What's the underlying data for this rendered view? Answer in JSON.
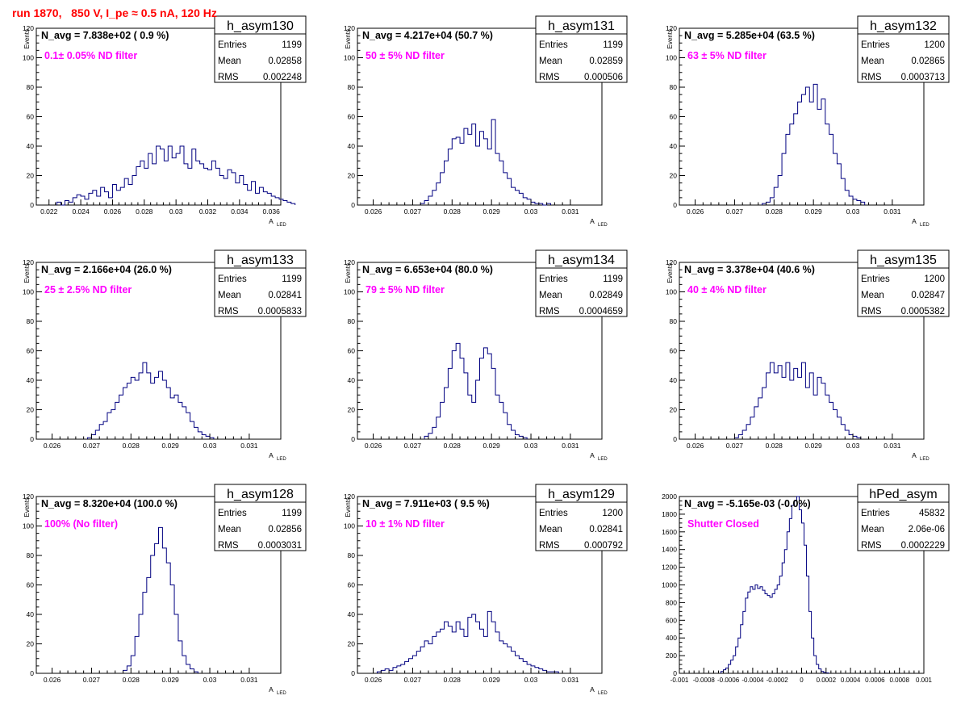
{
  "run_title": "run 1870,   850 V, I_pe ≈ 0.5 nA, 120 Hz",
  "colors": {
    "histogram": "#000080",
    "annotation": "#ff00ff",
    "title": "#ff0000",
    "text": "#000000"
  },
  "stats_labels": {
    "entries": "Entries",
    "mean": "Mean",
    "rms": "RMS"
  },
  "chart_data": [
    {
      "type": "histogram",
      "name": "h_asym130",
      "navg": "N_avg = 7.838e+02 ( 0.9 %)",
      "filter": "0.1± 0.05% ND filter",
      "entries": "1199",
      "mean": "0.02858",
      "rms": "0.002248",
      "ylabel": "Events",
      "xlabel": "A",
      "xlabel_sub": "LED",
      "xlim": [
        0.0212,
        0.0366
      ],
      "ylim": [
        0,
        120
      ],
      "xticks": [
        0.022,
        0.024,
        0.026,
        0.028,
        0.03,
        0.032,
        0.034,
        0.036
      ],
      "xtick_labels": [
        "0.022",
        "0.024",
        "0.026",
        "0.028",
        "0.03",
        "0.032",
        "0.034",
        "0.036"
      ],
      "yticks": [
        0,
        20,
        40,
        60,
        80,
        100,
        120
      ],
      "ytick_labels": [
        "0",
        "20",
        "40",
        "60",
        "80",
        "100",
        "120"
      ],
      "bin_start": 0.0225,
      "bin_width": 0.00025,
      "counts": [
        2,
        0,
        3,
        2,
        5,
        7,
        6,
        4,
        8,
        10,
        6,
        12,
        9,
        5,
        14,
        10,
        12,
        18,
        14,
        20,
        26,
        30,
        25,
        35,
        28,
        40,
        38,
        30,
        40,
        32,
        35,
        40,
        28,
        25,
        38,
        30,
        28,
        25,
        24,
        30,
        25,
        20,
        18,
        24,
        22,
        15,
        20,
        14,
        10,
        16,
        8,
        12,
        9,
        8,
        6,
        5,
        4,
        3,
        2,
        1
      ]
    },
    {
      "type": "histogram",
      "name": "h_asym131",
      "navg": "N_avg = 4.217e+04 (50.7 %)",
      "filter": "50 ± 5% ND filter",
      "entries": "1199",
      "mean": "0.02859",
      "rms": "0.000506",
      "ylabel": "Events",
      "xlabel": "A",
      "xlabel_sub": "LED",
      "xlim": [
        0.0256,
        0.0318
      ],
      "ylim": [
        0,
        120
      ],
      "xticks": [
        0.026,
        0.027,
        0.028,
        0.029,
        0.03,
        0.031
      ],
      "xtick_labels": [
        "0.026",
        "0.027",
        "0.028",
        "0.029",
        "0.03",
        "0.031"
      ],
      "yticks": [
        0,
        20,
        40,
        60,
        80,
        100,
        120
      ],
      "ytick_labels": [
        "0",
        "20",
        "40",
        "60",
        "80",
        "100",
        "120"
      ],
      "bin_start": 0.0272,
      "bin_width": 0.0001,
      "counts": [
        1,
        3,
        6,
        10,
        15,
        22,
        30,
        38,
        45,
        46,
        42,
        52,
        48,
        55,
        40,
        50,
        45,
        38,
        58,
        35,
        30,
        22,
        18,
        12,
        10,
        8,
        5,
        4,
        2,
        1,
        1,
        0,
        1
      ]
    },
    {
      "type": "histogram",
      "name": "h_asym132",
      "navg": "N_avg = 5.285e+04 (63.5 %)",
      "filter": "63 ± 5% ND filter",
      "entries": "1200",
      "mean": "0.02865",
      "rms": "0.0003713",
      "ylabel": "Events",
      "xlabel": "A",
      "xlabel_sub": "LED",
      "xlim": [
        0.0256,
        0.0318
      ],
      "ylim": [
        0,
        120
      ],
      "xticks": [
        0.026,
        0.027,
        0.028,
        0.029,
        0.03,
        0.031
      ],
      "xtick_labels": [
        "0.026",
        "0.027",
        "0.028",
        "0.029",
        "0.03",
        "0.031"
      ],
      "yticks": [
        0,
        20,
        40,
        60,
        80,
        100,
        120
      ],
      "ytick_labels": [
        "0",
        "20",
        "40",
        "60",
        "80",
        "100",
        "120"
      ],
      "bin_start": 0.0277,
      "bin_width": 0.0001,
      "counts": [
        1,
        2,
        5,
        12,
        20,
        35,
        48,
        55,
        62,
        70,
        75,
        80,
        70,
        82,
        65,
        72,
        55,
        48,
        35,
        28,
        18,
        10,
        6,
        4,
        3,
        2
      ]
    },
    {
      "type": "histogram",
      "name": "h_asym133",
      "navg": "N_avg = 2.166e+04 (26.0 %)",
      "filter": "25 ± 2.5% ND filter",
      "entries": "1199",
      "mean": "0.02841",
      "rms": "0.0005833",
      "ylabel": "Events",
      "xlabel": "A",
      "xlabel_sub": "LED",
      "xlim": [
        0.0256,
        0.0318
      ],
      "ylim": [
        0,
        120
      ],
      "xticks": [
        0.026,
        0.027,
        0.028,
        0.029,
        0.03,
        0.031
      ],
      "xtick_labels": [
        "0.026",
        "0.027",
        "0.028",
        "0.029",
        "0.03",
        "0.031"
      ],
      "yticks": [
        0,
        20,
        40,
        60,
        80,
        100,
        120
      ],
      "ytick_labels": [
        "0",
        "20",
        "40",
        "60",
        "80",
        "100",
        "120"
      ],
      "bin_start": 0.0269,
      "bin_width": 0.0001,
      "counts": [
        1,
        3,
        6,
        10,
        12,
        18,
        20,
        25,
        30,
        35,
        38,
        42,
        40,
        45,
        52,
        45,
        38,
        42,
        46,
        40,
        35,
        28,
        30,
        25,
        22,
        18,
        12,
        8,
        5,
        3,
        2,
        1
      ]
    },
    {
      "type": "histogram",
      "name": "h_asym134",
      "navg": "N_avg = 6.653e+04 (80.0 %)",
      "filter": "79 ± 5% ND filter",
      "entries": "1199",
      "mean": "0.02849",
      "rms": "0.0004659",
      "ylabel": "Events",
      "xlabel": "A",
      "xlabel_sub": "LED",
      "xlim": [
        0.0256,
        0.0318
      ],
      "ylim": [
        0,
        120
      ],
      "xticks": [
        0.026,
        0.027,
        0.028,
        0.029,
        0.03,
        0.031
      ],
      "xtick_labels": [
        "0.026",
        "0.027",
        "0.028",
        "0.029",
        "0.03",
        "0.031"
      ],
      "yticks": [
        0,
        20,
        40,
        60,
        80,
        100,
        120
      ],
      "ytick_labels": [
        "0",
        "20",
        "40",
        "60",
        "80",
        "100",
        "120"
      ],
      "bin_start": 0.0273,
      "bin_width": 0.0001,
      "counts": [
        2,
        4,
        8,
        15,
        25,
        35,
        48,
        60,
        65,
        55,
        45,
        30,
        25,
        40,
        55,
        62,
        58,
        48,
        30,
        25,
        18,
        10,
        6,
        3,
        2,
        1
      ]
    },
    {
      "type": "histogram",
      "name": "h_asym135",
      "navg": "N_avg = 3.378e+04 (40.6 %)",
      "filter": "40 ± 4% ND filter",
      "entries": "1200",
      "mean": "0.02847",
      "rms": "0.0005382",
      "ylabel": "Events",
      "xlabel": "A",
      "xlabel_sub": "LED",
      "xlim": [
        0.0256,
        0.0318
      ],
      "ylim": [
        0,
        120
      ],
      "xticks": [
        0.026,
        0.027,
        0.028,
        0.029,
        0.03,
        0.031
      ],
      "xtick_labels": [
        "0.026",
        "0.027",
        "0.028",
        "0.029",
        "0.03",
        "0.031"
      ],
      "yticks": [
        0,
        20,
        40,
        60,
        80,
        100,
        120
      ],
      "ytick_labels": [
        "0",
        "20",
        "40",
        "60",
        "80",
        "100",
        "120"
      ],
      "bin_start": 0.027,
      "bin_width": 0.0001,
      "counts": [
        1,
        3,
        6,
        10,
        15,
        22,
        28,
        35,
        45,
        52,
        45,
        50,
        42,
        52,
        40,
        48,
        42,
        52,
        35,
        45,
        30,
        42,
        38,
        30,
        25,
        20,
        15,
        10,
        6,
        3,
        2,
        1
      ]
    },
    {
      "type": "histogram",
      "name": "h_asym128",
      "navg": "N_avg = 8.320e+04 (100.0 %)",
      "filter": "100% (No filter)",
      "entries": "1199",
      "mean": "0.02856",
      "rms": "0.0003031",
      "ylabel": "Events",
      "xlabel": "A",
      "xlabel_sub": "LED",
      "xlim": [
        0.0256,
        0.0318
      ],
      "ylim": [
        0,
        120
      ],
      "xticks": [
        0.026,
        0.027,
        0.028,
        0.029,
        0.03,
        0.031
      ],
      "xtick_labels": [
        "0.026",
        "0.027",
        "0.028",
        "0.029",
        "0.03",
        "0.031"
      ],
      "yticks": [
        0,
        20,
        40,
        60,
        80,
        100,
        120
      ],
      "ytick_labels": [
        "0",
        "20",
        "40",
        "60",
        "80",
        "100",
        "120"
      ],
      "bin_start": 0.0278,
      "bin_width": 0.0001,
      "counts": [
        2,
        5,
        12,
        25,
        40,
        55,
        65,
        80,
        88,
        99,
        85,
        75,
        60,
        40,
        22,
        12,
        6,
        3,
        1
      ]
    },
    {
      "type": "histogram",
      "name": "h_asym129",
      "navg": "N_avg = 7.911e+03 ( 9.5 %)",
      "filter": "10 ± 1% ND filter",
      "entries": "1200",
      "mean": "0.02841",
      "rms": "0.000792",
      "ylabel": "Events",
      "xlabel": "A",
      "xlabel_sub": "LED",
      "xlim": [
        0.0256,
        0.0318
      ],
      "ylim": [
        0,
        120
      ],
      "xticks": [
        0.026,
        0.027,
        0.028,
        0.029,
        0.03,
        0.031
      ],
      "xtick_labels": [
        "0.026",
        "0.027",
        "0.028",
        "0.029",
        "0.03",
        "0.031"
      ],
      "yticks": [
        0,
        20,
        40,
        60,
        80,
        100,
        120
      ],
      "ytick_labels": [
        "0",
        "20",
        "40",
        "60",
        "80",
        "100",
        "120"
      ],
      "bin_start": 0.0261,
      "bin_width": 0.0001,
      "counts": [
        1,
        2,
        3,
        2,
        4,
        5,
        6,
        8,
        10,
        12,
        15,
        18,
        22,
        20,
        25,
        28,
        30,
        35,
        32,
        28,
        35,
        30,
        25,
        38,
        40,
        35,
        30,
        25,
        42,
        35,
        28,
        22,
        20,
        18,
        15,
        12,
        10,
        8,
        6,
        5,
        4,
        3,
        2,
        1,
        1,
        1
      ]
    },
    {
      "type": "histogram",
      "name": "hPed_asym",
      "navg": "N_avg = -5.165e-03 (-0.0%)",
      "filter": "Shutter Closed",
      "entries": "45832",
      "mean": "2.06e-06",
      "rms": "0.0002229",
      "ylabel": "",
      "xlabel": "",
      "xlabel_sub": "",
      "xlim": [
        -0.001,
        0.001
      ],
      "ylim": [
        0,
        2000
      ],
      "xticks": [
        -0.001,
        -0.0008,
        -0.0006,
        -0.0004,
        -0.0002,
        0,
        0.0002,
        0.0004,
        0.0006,
        0.0008,
        0.001
      ],
      "xtick_labels": [
        "-0.001",
        "-0.0008",
        "-0.0006",
        "-0.0004",
        "-0.0002",
        "0",
        "0.0002",
        "0.0004",
        "0.0006",
        "0.0008",
        "0.001"
      ],
      "yticks": [
        0,
        200,
        400,
        600,
        800,
        1000,
        1200,
        1400,
        1600,
        1800,
        2000
      ],
      "ytick_labels": [
        "0",
        "200",
        "400",
        "600",
        "800",
        "1000",
        "1200",
        "1400",
        "1600",
        "1800",
        "2000"
      ],
      "bin_start": -0.00066,
      "bin_width": 2e-05,
      "counts": [
        20,
        40,
        60,
        100,
        150,
        200,
        300,
        400,
        550,
        700,
        850,
        920,
        980,
        950,
        1000,
        960,
        980,
        940,
        900,
        880,
        860,
        900,
        950,
        1000,
        1100,
        1250,
        1400,
        1600,
        1750,
        1900,
        1950,
        2000,
        1850,
        1700,
        1450,
        1100,
        700,
        400,
        200,
        100,
        50,
        20,
        10,
        5
      ]
    }
  ]
}
